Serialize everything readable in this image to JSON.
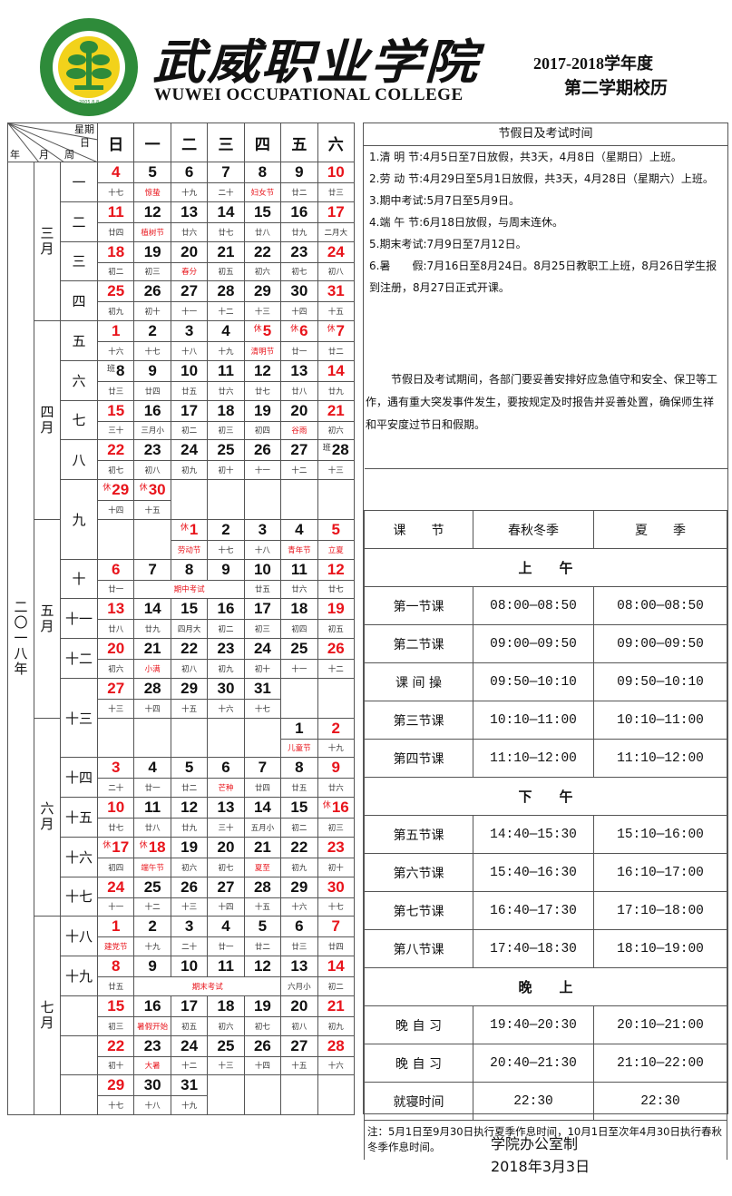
{
  "header": {
    "logo_text_cn": "武威职业学院",
    "logo_text_en": "WUWEI OCCUPATIONAL COLLEGE",
    "logo_year": "2005.8.8",
    "brand_cn": "武威职业学院",
    "brand_en": "WUWEI OCCUPATIONAL COLLEGE",
    "term_year": "2017-2018学年度",
    "term_name": "第二学期校历",
    "colors": {
      "logo_green": "#2e8b3a",
      "logo_yellow": "#f2d21b",
      "red": "#e8141b"
    }
  },
  "calendar": {
    "corner": {
      "weekday": "星期",
      "day": "日",
      "year": "年",
      "month": "月",
      "week": "周"
    },
    "days": [
      "日",
      "一",
      "二",
      "三",
      "四",
      "五",
      "六"
    ],
    "year_label": "二〇一八年",
    "rows": [
      {
        "month": "三月",
        "monthSpan": 4,
        "week": "一",
        "cells": [
          {
            "d": "4",
            "l": "十七",
            "r": 1
          },
          {
            "d": "5",
            "l": "惊蛰",
            "lr": 1
          },
          {
            "d": "6",
            "l": "十九"
          },
          {
            "d": "7",
            "l": "二十"
          },
          {
            "d": "8",
            "l": "妇女节",
            "lr": 1
          },
          {
            "d": "9",
            "l": "廿二"
          },
          {
            "d": "10",
            "l": "廿三",
            "r": 1
          }
        ]
      },
      {
        "week": "二",
        "cells": [
          {
            "d": "11",
            "l": "廿四",
            "r": 1
          },
          {
            "d": "12",
            "l": "植树节",
            "lr": 1
          },
          {
            "d": "13",
            "l": "廿六"
          },
          {
            "d": "14",
            "l": "廿七"
          },
          {
            "d": "15",
            "l": "廿八"
          },
          {
            "d": "16",
            "l": "廿九"
          },
          {
            "d": "17",
            "l": "二月大",
            "r": 1
          }
        ]
      },
      {
        "week": "三",
        "cells": [
          {
            "d": "18",
            "l": "初二",
            "r": 1
          },
          {
            "d": "19",
            "l": "初三"
          },
          {
            "d": "20",
            "l": "春分",
            "lr": 1
          },
          {
            "d": "21",
            "l": "初五"
          },
          {
            "d": "22",
            "l": "初六"
          },
          {
            "d": "23",
            "l": "初七"
          },
          {
            "d": "24",
            "l": "初八",
            "r": 1
          }
        ]
      },
      {
        "week": "四",
        "cells": [
          {
            "d": "25",
            "l": "初九",
            "r": 1
          },
          {
            "d": "26",
            "l": "初十"
          },
          {
            "d": "27",
            "l": "十一"
          },
          {
            "d": "28",
            "l": "十二"
          },
          {
            "d": "29",
            "l": "十三"
          },
          {
            "d": "30",
            "l": "十四"
          },
          {
            "d": "31",
            "l": "十五",
            "r": 1
          }
        ]
      },
      {
        "month": "四月",
        "monthSpan": 5,
        "week": "五",
        "cells": [
          {
            "d": "1",
            "l": "十六",
            "r": 1
          },
          {
            "d": "2",
            "l": "十七"
          },
          {
            "d": "3",
            "l": "十八"
          },
          {
            "d": "4",
            "l": "十九"
          },
          {
            "d": "5",
            "l": "清明节",
            "r": 1,
            "lr": 1,
            "m": "休"
          },
          {
            "d": "6",
            "l": "廿一",
            "r": 1,
            "m": "休"
          },
          {
            "d": "7",
            "l": "廿二",
            "r": 1,
            "m": "休"
          }
        ]
      },
      {
        "week": "六",
        "cells": [
          {
            "d": "8",
            "l": "廿三",
            "m": "班"
          },
          {
            "d": "9",
            "l": "廿四"
          },
          {
            "d": "10",
            "l": "廿五"
          },
          {
            "d": "11",
            "l": "廿六"
          },
          {
            "d": "12",
            "l": "廿七"
          },
          {
            "d": "13",
            "l": "廿八"
          },
          {
            "d": "14",
            "l": "廿九",
            "r": 1
          }
        ]
      },
      {
        "week": "七",
        "cells": [
          {
            "d": "15",
            "l": "三十",
            "r": 1
          },
          {
            "d": "16",
            "l": "三月小"
          },
          {
            "d": "17",
            "l": "初二"
          },
          {
            "d": "18",
            "l": "初三"
          },
          {
            "d": "19",
            "l": "初四"
          },
          {
            "d": "20",
            "l": "谷雨",
            "lr": 1
          },
          {
            "d": "21",
            "l": "初六",
            "r": 1
          }
        ]
      },
      {
        "week": "八",
        "cells": [
          {
            "d": "22",
            "l": "初七",
            "r": 1
          },
          {
            "d": "23",
            "l": "初八"
          },
          {
            "d": "24",
            "l": "初九"
          },
          {
            "d": "25",
            "l": "初十"
          },
          {
            "d": "26",
            "l": "十一"
          },
          {
            "d": "27",
            "l": "十二"
          },
          {
            "d": "28",
            "l": "十三",
            "m": "班"
          }
        ]
      },
      {
        "week": "九",
        "weekSpan": 2,
        "cells": [
          {
            "d": "29",
            "l": "十四",
            "r": 1,
            "m": "休"
          },
          {
            "d": "30",
            "l": "十五",
            "r": 1,
            "m": "休"
          },
          null,
          null,
          null,
          null,
          null
        ]
      },
      {
        "month": "五月",
        "monthSpan": 5,
        "cells": [
          null,
          null,
          {
            "d": "1",
            "l": "劳动节",
            "r": 1,
            "lr": 1,
            "m": "休"
          },
          {
            "d": "2",
            "l": "十七"
          },
          {
            "d": "3",
            "l": "十八"
          },
          {
            "d": "4",
            "l": "青年节",
            "lr": 1
          },
          {
            "d": "5",
            "l": "立夏",
            "r": 1,
            "lr": 1
          }
        ]
      },
      {
        "week": "十",
        "cells": [
          {
            "d": "6",
            "l": "廿一",
            "r": 1
          },
          {
            "d": "7",
            "l": "期中考试",
            "lr": 1,
            "ls": 3
          },
          {
            "d": "8",
            "lc": 1
          },
          {
            "d": "9",
            "lc": 1
          },
          {
            "d": "10",
            "l": "廿五"
          },
          {
            "d": "11",
            "l": "廿六"
          },
          {
            "d": "12",
            "l": "廿七",
            "r": 1
          }
        ]
      },
      {
        "week": "十一",
        "cells": [
          {
            "d": "13",
            "l": "廿八",
            "r": 1
          },
          {
            "d": "14",
            "l": "廿九"
          },
          {
            "d": "15",
            "l": "四月大"
          },
          {
            "d": "16",
            "l": "初二"
          },
          {
            "d": "17",
            "l": "初三"
          },
          {
            "d": "18",
            "l": "初四"
          },
          {
            "d": "19",
            "l": "初五",
            "r": 1
          }
        ]
      },
      {
        "week": "十二",
        "cells": [
          {
            "d": "20",
            "l": "初六",
            "r": 1
          },
          {
            "d": "21",
            "l": "小满",
            "lr": 1
          },
          {
            "d": "22",
            "l": "初八"
          },
          {
            "d": "23",
            "l": "初九"
          },
          {
            "d": "24",
            "l": "初十"
          },
          {
            "d": "25",
            "l": "十一"
          },
          {
            "d": "26",
            "l": "十二",
            "r": 1
          }
        ]
      },
      {
        "week": "十三",
        "weekSpan": 2,
        "cells": [
          {
            "d": "27",
            "l": "十三",
            "r": 1
          },
          {
            "d": "28",
            "l": "十四"
          },
          {
            "d": "29",
            "l": "十五"
          },
          {
            "d": "30",
            "l": "十六"
          },
          {
            "d": "31",
            "l": "十七"
          },
          null,
          null
        ]
      },
      {
        "month": "六月",
        "monthSpan": 5,
        "cells": [
          null,
          null,
          null,
          null,
          null,
          {
            "d": "1",
            "l": "儿童节",
            "lr": 1
          },
          {
            "d": "2",
            "l": "十九",
            "r": 1
          }
        ]
      },
      {
        "week": "十四",
        "cells": [
          {
            "d": "3",
            "l": "二十",
            "r": 1
          },
          {
            "d": "4",
            "l": "廿一"
          },
          {
            "d": "5",
            "l": "廿二"
          },
          {
            "d": "6",
            "l": "芒种",
            "lr": 1
          },
          {
            "d": "7",
            "l": "廿四"
          },
          {
            "d": "8",
            "l": "廿五"
          },
          {
            "d": "9",
            "l": "廿六",
            "r": 1
          }
        ]
      },
      {
        "week": "十五",
        "cells": [
          {
            "d": "10",
            "l": "廿七",
            "r": 1
          },
          {
            "d": "11",
            "l": "廿八"
          },
          {
            "d": "12",
            "l": "廿九"
          },
          {
            "d": "13",
            "l": "三十"
          },
          {
            "d": "14",
            "l": "五月小"
          },
          {
            "d": "15",
            "l": "初二"
          },
          {
            "d": "16",
            "l": "初三",
            "r": 1,
            "m": "休"
          }
        ]
      },
      {
        "week": "十六",
        "cells": [
          {
            "d": "17",
            "l": "初四",
            "r": 1,
            "m": "休"
          },
          {
            "d": "18",
            "l": "端午节",
            "r": 1,
            "lr": 1,
            "m": "休"
          },
          {
            "d": "19",
            "l": "初六"
          },
          {
            "d": "20",
            "l": "初七"
          },
          {
            "d": "21",
            "l": "夏至",
            "lr": 1
          },
          {
            "d": "22",
            "l": "初九"
          },
          {
            "d": "23",
            "l": "初十",
            "r": 1
          }
        ]
      },
      {
        "week": "十七",
        "cells": [
          {
            "d": "24",
            "l": "十一",
            "r": 1
          },
          {
            "d": "25",
            "l": "十二"
          },
          {
            "d": "26",
            "l": "十三"
          },
          {
            "d": "27",
            "l": "十四"
          },
          {
            "d": "28",
            "l": "十五"
          },
          {
            "d": "29",
            "l": "十六"
          },
          {
            "d": "30",
            "l": "十七",
            "r": 1
          }
        ]
      },
      {
        "month": "七月",
        "monthSpan": 5,
        "week": "十八",
        "cells": [
          {
            "d": "1",
            "l": "建党节",
            "r": 1,
            "lr": 1
          },
          {
            "d": "2",
            "l": "十九"
          },
          {
            "d": "3",
            "l": "二十"
          },
          {
            "d": "4",
            "l": "廿一"
          },
          {
            "d": "5",
            "l": "廿二"
          },
          {
            "d": "6",
            "l": "廿三"
          },
          {
            "d": "7",
            "l": "廿四",
            "r": 1
          }
        ]
      },
      {
        "week": "十九",
        "cells": [
          {
            "d": "8",
            "l": "廿五",
            "r": 1
          },
          {
            "d": "9",
            "l": "期末考试",
            "lr": 1,
            "ls": 4
          },
          {
            "d": "10",
            "lc": 1
          },
          {
            "d": "11",
            "lc": 1
          },
          {
            "d": "12",
            "lc": 1
          },
          {
            "d": "13",
            "l": "六月小"
          },
          {
            "d": "14",
            "l": "初二",
            "r": 1
          }
        ]
      },
      {
        "week": "",
        "cells": [
          {
            "d": "15",
            "l": "初三",
            "r": 1
          },
          {
            "d": "16",
            "l": "暑假开始",
            "lr": 1
          },
          {
            "d": "17",
            "l": "初五"
          },
          {
            "d": "18",
            "l": "初六"
          },
          {
            "d": "19",
            "l": "初七"
          },
          {
            "d": "20",
            "l": "初八"
          },
          {
            "d": "21",
            "l": "初九",
            "r": 1
          }
        ]
      },
      {
        "week": "",
        "cells": [
          {
            "d": "22",
            "l": "初十",
            "r": 1
          },
          {
            "d": "23",
            "l": "大暑",
            "lr": 1
          },
          {
            "d": "24",
            "l": "十二"
          },
          {
            "d": "25",
            "l": "十三"
          },
          {
            "d": "26",
            "l": "十四"
          },
          {
            "d": "27",
            "l": "十五"
          },
          {
            "d": "28",
            "l": "十六",
            "r": 1
          }
        ]
      },
      {
        "week": "",
        "cells": [
          {
            "d": "29",
            "l": "十七",
            "r": 1
          },
          {
            "d": "30",
            "l": "十八"
          },
          {
            "d": "31",
            "l": "十九"
          },
          null,
          null,
          null,
          null
        ]
      }
    ]
  },
  "notices": {
    "title": "节假日及考试时间",
    "items": [
      "1.清 明 节:4月5日至7日放假，共3天，4月8日（星期日）上班。",
      "2.劳 动 节:4月29日至5月1日放假，共3天，4月28日（星期六）上班。",
      "3.期中考试:5月7日至5月9日。",
      "4.端 午 节:6月18日放假，与周末连休。",
      "5.期末考试:7月9日至7月12日。",
      "6.暑　　假:7月16日至8月24日。8月25日教职工上班，8月26日学生报到注册，8月27日正式开课。"
    ],
    "paragraph": "节假日及考试期间，各部门要妥善安排好应急值守和安全、保卫等工作，遇有重大突发事件发生，要按规定及时报告并妥善处置，确保师生祥和平安度过节日和假期。"
  },
  "schedule": {
    "headers": [
      "课　　节",
      "春秋冬季",
      "夏　　季"
    ],
    "sections": [
      {
        "title": "上　　午",
        "rows": [
          [
            "第一节课",
            "08:00—08:50",
            "08:00—08:50"
          ],
          [
            "第二节课",
            "09:00—09:50",
            "09:00—09:50"
          ],
          [
            "课 间 操",
            "09:50—10:10",
            "09:50—10:10"
          ],
          [
            "第三节课",
            "10:10—11:00",
            "10:10—11:00"
          ],
          [
            "第四节课",
            "11:10—12:00",
            "11:10—12:00"
          ]
        ]
      },
      {
        "title": "下　　午",
        "rows": [
          [
            "第五节课",
            "14:40—15:30",
            "15:10—16:00"
          ],
          [
            "第六节课",
            "15:40—16:30",
            "16:10—17:00"
          ],
          [
            "第七节课",
            "16:40—17:30",
            "17:10—18:00"
          ],
          [
            "第八节课",
            "17:40—18:30",
            "18:10—19:00"
          ]
        ]
      },
      {
        "title": "晚　　上",
        "rows": [
          [
            "晚 自 习",
            "19:40—20:30",
            "20:10—21:00"
          ],
          [
            "晚 自 习",
            "20:40—21:30",
            "21:10—22:00"
          ],
          [
            "就寝时间",
            "22:30",
            "22:30"
          ]
        ]
      }
    ],
    "note": "注：5月1日至9月30日执行夏季作息时间，10月1日至次年4月30日执行春秋冬季作息时间。"
  },
  "footer": {
    "issuer": "学院办公室制",
    "date": "2018年3月3日"
  }
}
